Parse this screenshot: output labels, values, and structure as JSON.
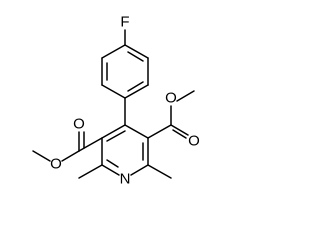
{
  "atoms": {
    "fluorine": "F",
    "left_carbonyl_oxygen": "O",
    "left_ether_oxygen": "O",
    "right_ether_oxygen": "O",
    "right_carbonyl_oxygen": "O",
    "nitrogen": "N"
  }
}
